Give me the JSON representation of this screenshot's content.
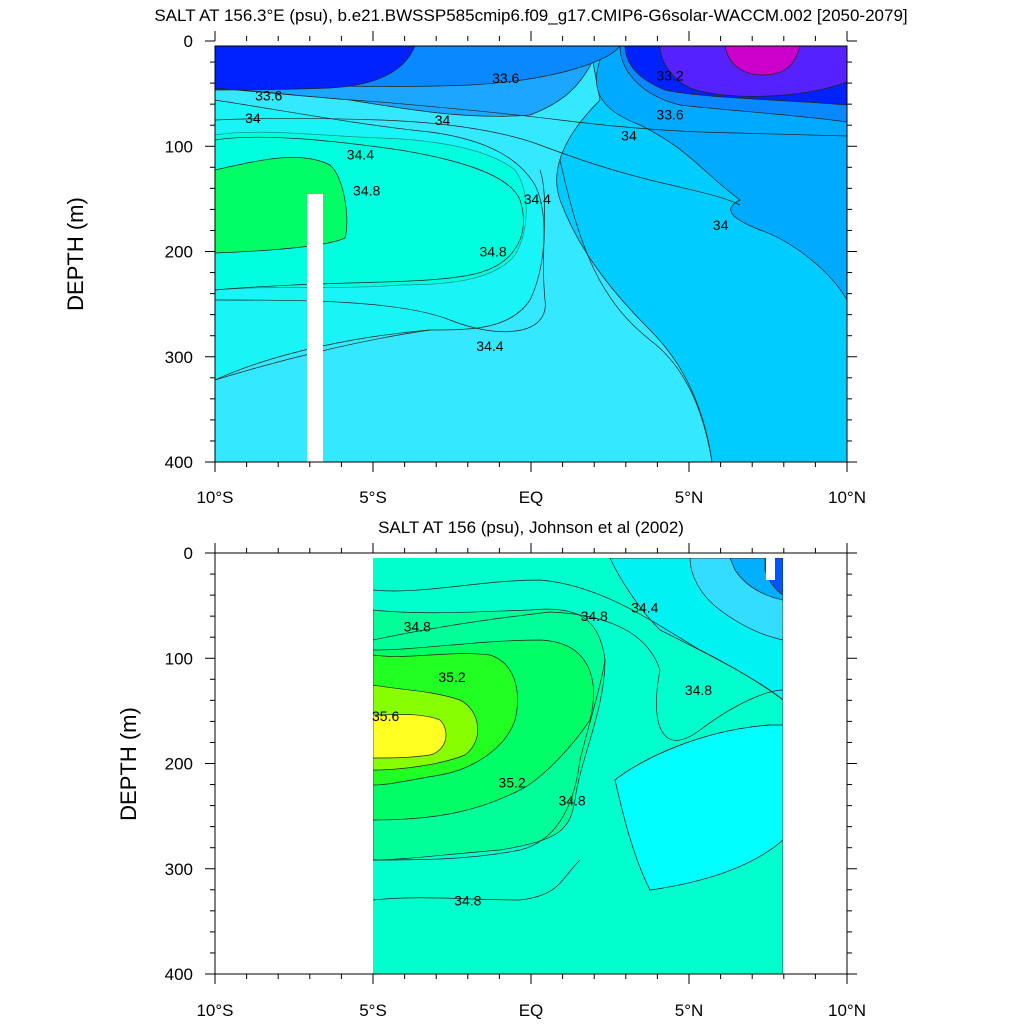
{
  "chart_data": [
    {
      "type": "contour",
      "title": "SALT AT 156.3°E (psu), b.e21.BWSSP585cmip6.f09_g17.CMIP6-G6solar-WACCM.002 [2050-2079]",
      "ylabel": "DEPTH (m)",
      "xlim": [
        -10,
        10
      ],
      "ylim": [
        400,
        0
      ],
      "yticks": [
        "0",
        "100",
        "200",
        "300",
        "400"
      ],
      "xticks": [
        "10°S",
        "5°S",
        "EQ",
        "5°N",
        "10°N"
      ],
      "contour_labels": [
        {
          "text": "33.6",
          "lat": -0.8,
          "depth": 35
        },
        {
          "text": "33.6",
          "lat": -8.3,
          "depth": 52
        },
        {
          "text": "33.2",
          "lat": 4.4,
          "depth": 33
        },
        {
          "text": "33.6",
          "lat": 4.4,
          "depth": 70
        },
        {
          "text": "34",
          "lat": -8.8,
          "depth": 73
        },
        {
          "text": "34",
          "lat": -2.8,
          "depth": 75
        },
        {
          "text": "34",
          "lat": 3.1,
          "depth": 90
        },
        {
          "text": "34",
          "lat": 6.0,
          "depth": 175
        },
        {
          "text": "34.4",
          "lat": -5.4,
          "depth": 108
        },
        {
          "text": "34.4",
          "lat": 0.2,
          "depth": 150
        },
        {
          "text": "34.4",
          "lat": -1.3,
          "depth": 290
        },
        {
          "text": "34.8",
          "lat": -5.2,
          "depth": 142
        },
        {
          "text": "34.8",
          "lat": -1.2,
          "depth": 200
        }
      ]
    },
    {
      "type": "contour",
      "title": "SALT AT 156 (psu), Johnson et al (2002)",
      "ylabel": "DEPTH (m)",
      "xlim": [
        -10,
        10
      ],
      "ylim": [
        400,
        0
      ],
      "data_lat_range": [
        -5,
        8
      ],
      "yticks": [
        "0",
        "100",
        "200",
        "300",
        "400"
      ],
      "xticks": [
        "10°S",
        "5°S",
        "EQ",
        "5°N",
        "10°N"
      ],
      "contour_labels": [
        {
          "text": "34.8",
          "lat": -3.6,
          "depth": 70
        },
        {
          "text": "34.8",
          "lat": 2.0,
          "depth": 60
        },
        {
          "text": "34.4",
          "lat": 3.6,
          "depth": 52
        },
        {
          "text": "35.2",
          "lat": -2.5,
          "depth": 118
        },
        {
          "text": "35.6",
          "lat": -4.6,
          "depth": 155
        },
        {
          "text": "35.2",
          "lat": -0.6,
          "depth": 218
        },
        {
          "text": "34.8",
          "lat": 5.3,
          "depth": 130
        },
        {
          "text": "34.8",
          "lat": 1.3,
          "depth": 235
        },
        {
          "text": "34.8",
          "lat": -2.0,
          "depth": 330
        }
      ]
    }
  ]
}
